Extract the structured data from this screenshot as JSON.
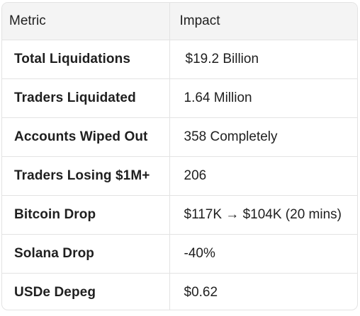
{
  "table": {
    "headers": {
      "metric": "Metric",
      "impact": "Impact"
    },
    "rows": [
      {
        "metric": "Total Liquidations",
        "impact": "$19.2 Billion"
      },
      {
        "metric": "Traders Liquidated",
        "impact": "1.64 Million"
      },
      {
        "metric": "Accounts Wiped Out",
        "impact": "358 Completely"
      },
      {
        "metric": "Traders Losing $1M+",
        "impact": "206"
      },
      {
        "metric": "Bitcoin Drop",
        "impact": "$117K → $104K (20 mins)"
      },
      {
        "metric": "Solana Drop",
        "impact": "-40%"
      },
      {
        "metric": "USDe Depeg",
        "impact": "$0.62"
      }
    ]
  }
}
